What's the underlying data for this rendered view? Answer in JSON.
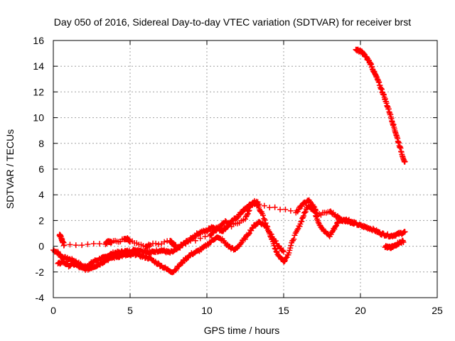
{
  "chart_data": {
    "type": "scatter",
    "title": "Day 050 of 2016, Sidereal Day-to-day VTEC variation (SDTVAR) for receiver brst",
    "xlabel": "GPS time / hours",
    "ylabel": "SDTVAR / TECUs",
    "xlim": [
      0,
      25
    ],
    "ylim": [
      -4,
      16
    ],
    "xticks": [
      0,
      5,
      10,
      15,
      20,
      25
    ],
    "yticks": [
      -4,
      -2,
      0,
      2,
      4,
      6,
      8,
      10,
      12,
      14,
      16
    ],
    "grid": true,
    "marker": "+",
    "color": "#ff0000",
    "series": [
      {
        "name": "SDTVAR main",
        "x": [
          0.0,
          0.3,
          0.5,
          0.7,
          1.0,
          1.3,
          1.6,
          2.0,
          2.3,
          2.6,
          3.0,
          3.3,
          3.6,
          4.0,
          4.3,
          4.6,
          5.0,
          5.3,
          5.6,
          6.0,
          6.3,
          6.6,
          7.0,
          7.3,
          7.6,
          8.0,
          8.3,
          8.6,
          9.0,
          9.3,
          9.6,
          10.0,
          10.3,
          10.6,
          11.0,
          11.3,
          11.6,
          12.0,
          12.3,
          12.6,
          13.0,
          13.3,
          13.6,
          14.0,
          14.3,
          14.6,
          15.0,
          15.3,
          15.6,
          16.0,
          16.3,
          16.6,
          17.0,
          17.3,
          17.6,
          18.0,
          18.3,
          18.6,
          19.0,
          19.3,
          19.6,
          20.0,
          20.3,
          20.6,
          21.0,
          21.3,
          21.6,
          22.0,
          22.3,
          22.6,
          22.9
        ],
        "y": [
          -0.3,
          -0.5,
          -0.8,
          -0.9,
          -1.0,
          -1.1,
          -1.3,
          -1.6,
          -1.5,
          -1.2,
          -1.0,
          -0.9,
          -0.7,
          -0.5,
          -0.5,
          -0.4,
          -0.4,
          -0.3,
          -0.3,
          -0.4,
          -0.5,
          -0.4,
          -0.3,
          -0.4,
          -0.5,
          -0.3,
          0.0,
          0.3,
          0.6,
          0.9,
          1.1,
          1.2,
          1.5,
          1.4,
          1.2,
          1.5,
          1.9,
          2.3,
          2.7,
          3.0,
          3.4,
          3.2,
          2.5,
          1.3,
          0.3,
          -0.6,
          -1.2,
          -0.6,
          0.5,
          1.5,
          2.4,
          3.2,
          2.7,
          1.8,
          1.2,
          0.8,
          1.4,
          2.0,
          2.1,
          1.9,
          1.8,
          1.6,
          1.5,
          1.4,
          1.2,
          1.0,
          0.9,
          0.8,
          0.9,
          1.0,
          1.1
        ]
      },
      {
        "name": "SDTVAR lower branch",
        "x": [
          0.3,
          0.6,
          1.0,
          1.4,
          1.8,
          2.2,
          2.6,
          3.0,
          3.4,
          3.8,
          4.2,
          4.6,
          5.0,
          5.4,
          5.8,
          6.2,
          6.6,
          7.0,
          7.4,
          7.8,
          8.2,
          8.6,
          9.0,
          9.4,
          9.8,
          10.2,
          10.6,
          11.0,
          11.4,
          11.8,
          12.2,
          12.6,
          13.0,
          13.4,
          13.8,
          14.2,
          14.6,
          15.0
        ],
        "y": [
          -1.4,
          -1.2,
          -1.5,
          -1.4,
          -1.7,
          -1.8,
          -1.6,
          -1.4,
          -1.1,
          -0.9,
          -0.8,
          -0.7,
          -0.7,
          -0.6,
          -0.8,
          -0.9,
          -1.2,
          -1.5,
          -1.8,
          -2.0,
          -1.5,
          -1.0,
          -0.6,
          -0.4,
          -0.1,
          0.3,
          0.7,
          0.5,
          0.0,
          -0.3,
          0.2,
          0.8,
          1.5,
          1.9,
          1.6,
          0.9,
          0.1,
          -0.5
        ]
      },
      {
        "name": "SDTVAR upper band",
        "x": [
          0.4,
          0.5,
          0.6,
          0.7,
          3.4,
          3.6,
          3.8,
          4.6,
          4.8,
          5.0,
          6.0,
          6.3,
          7.6,
          7.8,
          8.0,
          10.2,
          10.5,
          10.8,
          11.2,
          11.6,
          12.5,
          12.8,
          13.1,
          13.4,
          15.8,
          16.2,
          16.6,
          17.0,
          17.2,
          18.0,
          18.4,
          18.8,
          19.2,
          19.6
        ],
        "y": [
          0.9,
          0.7,
          0.4,
          0.1,
          0.2,
          0.4,
          0.3,
          0.5,
          0.6,
          0.4,
          -0.1,
          0.1,
          0.4,
          0.2,
          0.0,
          0.8,
          1.2,
          1.5,
          1.9,
          1.6,
          2.1,
          3.0,
          3.5,
          3.3,
          2.6,
          3.2,
          3.6,
          3.0,
          2.4,
          2.7,
          2.4,
          2.0,
          2.0,
          1.8
        ]
      },
      {
        "name": "SDTVAR end tail",
        "x": [
          21.6,
          21.8,
          22.0,
          22.2,
          22.4,
          22.6,
          22.8
        ],
        "y": [
          0.0,
          -0.1,
          -0.1,
          0.0,
          0.2,
          0.3,
          0.4
        ]
      },
      {
        "name": "SDTVAR high",
        "x": [
          19.7,
          19.9,
          20.1,
          20.3,
          20.5,
          20.7,
          20.9,
          21.1,
          21.3,
          21.5,
          21.7,
          21.9,
          22.1,
          22.3,
          22.5,
          22.7,
          22.9
        ],
        "y": [
          15.3,
          15.2,
          15.1,
          14.8,
          14.5,
          14.1,
          13.5,
          13.0,
          12.4,
          11.8,
          11.1,
          10.4,
          9.6,
          8.8,
          8.0,
          7.2,
          6.5
        ]
      }
    ]
  }
}
